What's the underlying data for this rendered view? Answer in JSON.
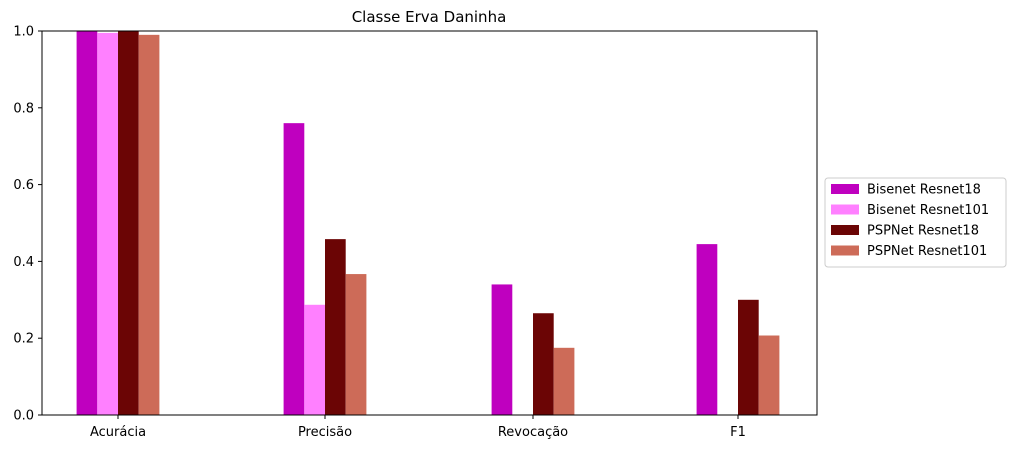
{
  "chart_data": {
    "type": "bar",
    "title": "Classe Erva Daninha",
    "xlabel": "",
    "ylabel": "",
    "ylim": [
      0,
      1.0
    ],
    "yticks": [
      "0.0",
      "0.2",
      "0.4",
      "0.6",
      "0.8",
      "1.0"
    ],
    "grid": false,
    "legend_position": "right",
    "categories": [
      "Acurácia",
      "Precisão",
      "Revocação",
      "F1"
    ],
    "series": [
      {
        "name": "Bisenet Resnet18",
        "color": "#bf00bf",
        "values": [
          0.999,
          0.76,
          0.34,
          0.445
        ]
      },
      {
        "name": "Bisenet Resnet101",
        "color": "#ff80ff",
        "values": [
          0.995,
          0.287,
          0.0,
          0.0
        ]
      },
      {
        "name": "PSPNet Resnet18",
        "color": "#6b0505",
        "values": [
          0.999,
          0.458,
          0.265,
          0.3
        ]
      },
      {
        "name": "PSPNet Resnet101",
        "color": "#cd6b58",
        "values": [
          0.99,
          0.367,
          0.175,
          0.207
        ]
      }
    ]
  }
}
